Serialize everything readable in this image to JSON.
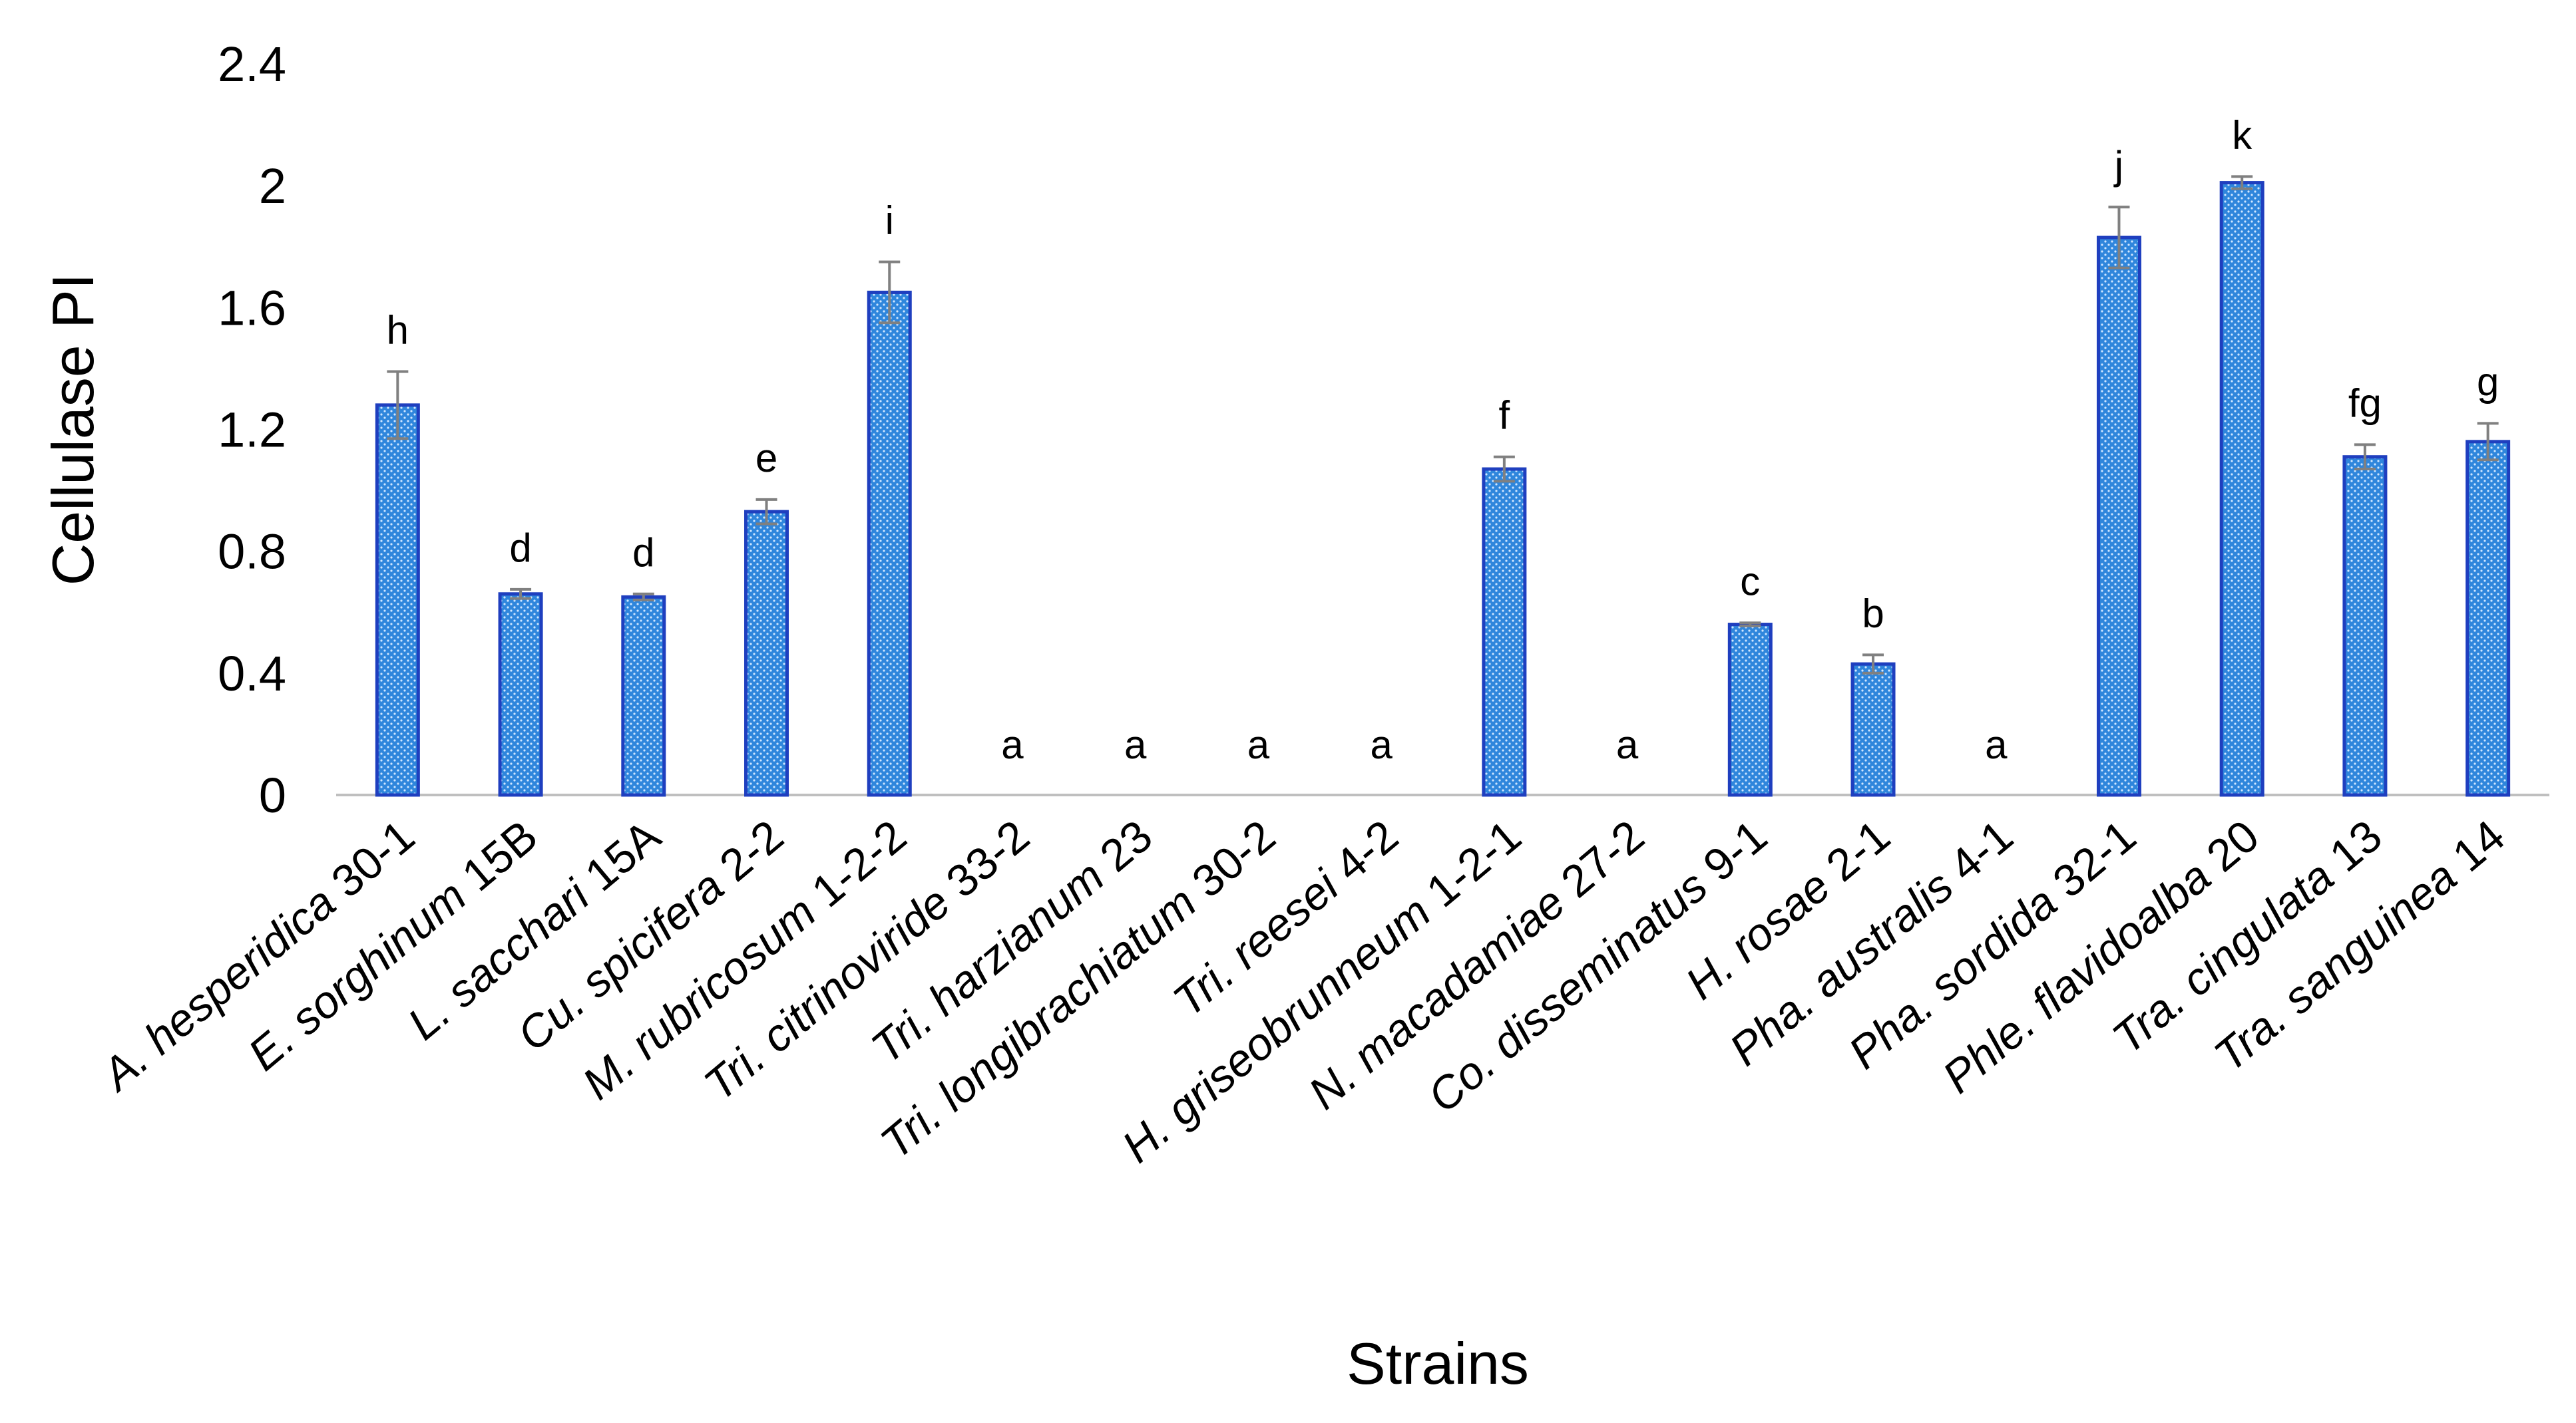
{
  "chart_data": {
    "type": "bar",
    "title": "",
    "xlabel": "Strains",
    "ylabel": "Cellulase PI",
    "ylim": [
      0,
      2.4
    ],
    "yticks": [
      "0",
      "0.4",
      "0.8",
      "1.2",
      "1.6",
      "2",
      "2.4"
    ],
    "grid": false,
    "legend": "none",
    "bar_color": "#2f7fd6",
    "bar_edge_color": "#1f3fbf",
    "error_bar_color": "#808080",
    "categories": [
      {
        "prefix": "A.",
        "name": "hesperidica",
        "strain": "30-1"
      },
      {
        "prefix": "E.",
        "name": "sorghinum",
        "strain": "15B"
      },
      {
        "prefix": "L.",
        "name": "sacchari",
        "strain": "15A"
      },
      {
        "prefix": "Cu.",
        "name": "spicifera",
        "strain": "2-2"
      },
      {
        "prefix": "M.",
        "name": "rubricosum",
        "strain": "1-2-2"
      },
      {
        "prefix": "Tri.",
        "name": "citrinoviride",
        "strain": "33-2"
      },
      {
        "prefix": "Tri.",
        "name": "harzianum",
        "strain": "23"
      },
      {
        "prefix": "Tri.",
        "name": "longibrachiatum",
        "strain": "30-2"
      },
      {
        "prefix": "Tri.",
        "name": "reesei",
        "strain": "4-2"
      },
      {
        "prefix": "H.",
        "name": "griseobrunneum",
        "strain": "1-2-1"
      },
      {
        "prefix": "N.",
        "name": "macadamiae",
        "strain": "27-2"
      },
      {
        "prefix": "Co.",
        "name": "disseminatus",
        "strain": "9-1"
      },
      {
        "prefix": "H.",
        "name": "rosae",
        "strain": "2-1"
      },
      {
        "prefix": "Pha.",
        "name": "australis",
        "strain": "4-1"
      },
      {
        "prefix": "Pha.",
        "name": "sordida",
        "strain": "32-1"
      },
      {
        "prefix": "Phle.",
        "name": "flavidoalba",
        "strain": "20"
      },
      {
        "prefix": "Tra.",
        "name": "cingulata",
        "strain": "13"
      },
      {
        "prefix": "Tra.",
        "name": "sanguinea",
        "strain": "14"
      }
    ],
    "values": [
      1.28,
      0.66,
      0.65,
      0.93,
      1.65,
      0,
      0,
      0,
      0,
      1.07,
      0,
      0.56,
      0.43,
      0,
      1.83,
      2.01,
      1.11,
      1.16
    ],
    "errors": [
      0.11,
      0.015,
      0.01,
      0.04,
      0.1,
      0,
      0,
      0,
      0,
      0.04,
      0,
      0.005,
      0.03,
      0,
      0.1,
      0.02,
      0.04,
      0.06
    ],
    "significance": [
      "h",
      "d",
      "d",
      "e",
      "i",
      "a",
      "a",
      "a",
      "a",
      "f",
      "a",
      "c",
      "b",
      "a",
      "j",
      "k",
      "fg",
      "g"
    ]
  }
}
